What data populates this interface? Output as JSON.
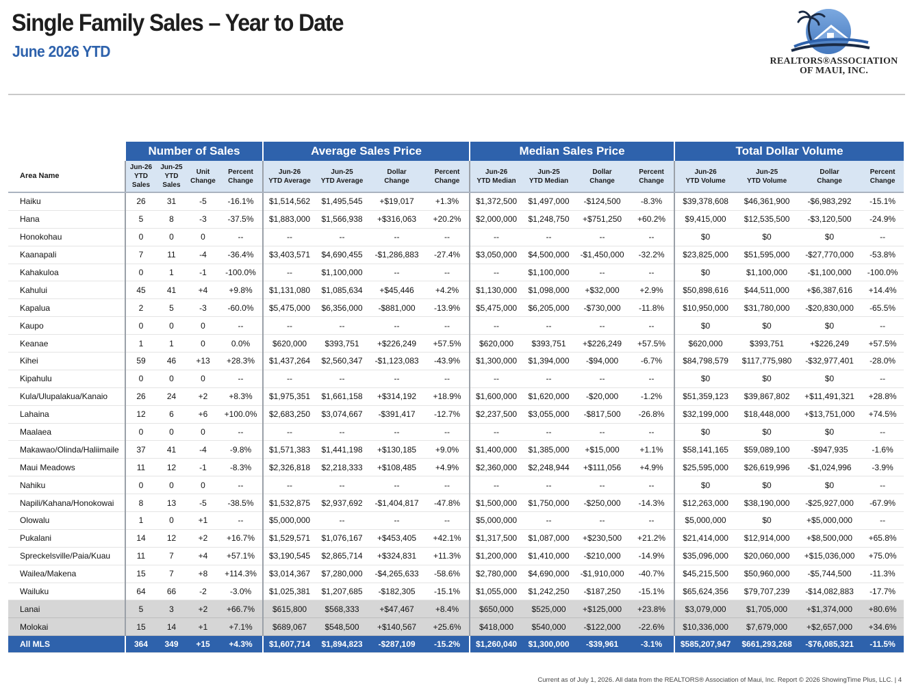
{
  "header": {
    "title": "Single Family Sales – Year to Date",
    "subtitle": "June 2026 YTD",
    "logo_line1": "REALTORS®ASSOCIATION",
    "logo_line2": "OF MAUI, INC."
  },
  "table": {
    "groups": [
      "Number of Sales",
      "Average Sales Price",
      "Median Sales Price",
      "Total Dollar Volume"
    ],
    "area_header": "Area Name",
    "subheaders": [
      [
        "Jun-26",
        "YTD",
        "Sales"
      ],
      [
        "Jun-25",
        "YTD",
        "Sales"
      ],
      [
        "Unit",
        "Change"
      ],
      [
        "Percent",
        "Change"
      ],
      [
        "Jun-26",
        "YTD Average"
      ],
      [
        "Jun-25",
        "YTD Average"
      ],
      [
        "Dollar",
        "Change"
      ],
      [
        "Percent",
        "Change"
      ],
      [
        "Jun-26",
        "YTD Median"
      ],
      [
        "Jun-25",
        "YTD Median"
      ],
      [
        "Dollar",
        "Change"
      ],
      [
        "Percent",
        "Change"
      ],
      [
        "Jun-26",
        "YTD Volume"
      ],
      [
        "Jun-25",
        "YTD Volume"
      ],
      [
        "Dollar",
        "Change"
      ],
      [
        "Percent",
        "Change"
      ]
    ],
    "rows": [
      [
        "Haiku",
        "26",
        "31",
        "-5",
        "-16.1%",
        "$1,514,562",
        "$1,495,545",
        "+$19,017",
        "+1.3%",
        "$1,372,500",
        "$1,497,000",
        "-$124,500",
        "-8.3%",
        "$39,378,608",
        "$46,361,900",
        "-$6,983,292",
        "-15.1%"
      ],
      [
        "Hana",
        "5",
        "8",
        "-3",
        "-37.5%",
        "$1,883,000",
        "$1,566,938",
        "+$316,063",
        "+20.2%",
        "$2,000,000",
        "$1,248,750",
        "+$751,250",
        "+60.2%",
        "$9,415,000",
        "$12,535,500",
        "-$3,120,500",
        "-24.9%"
      ],
      [
        "Honokohau",
        "0",
        "0",
        "0",
        "--",
        "--",
        "--",
        "--",
        "--",
        "--",
        "--",
        "--",
        "--",
        "$0",
        "$0",
        "$0",
        "--"
      ],
      [
        "Kaanapali",
        "7",
        "11",
        "-4",
        "-36.4%",
        "$3,403,571",
        "$4,690,455",
        "-$1,286,883",
        "-27.4%",
        "$3,050,000",
        "$4,500,000",
        "-$1,450,000",
        "-32.2%",
        "$23,825,000",
        "$51,595,000",
        "-$27,770,000",
        "-53.8%"
      ],
      [
        "Kahakuloa",
        "0",
        "1",
        "-1",
        "-100.0%",
        "--",
        "$1,100,000",
        "--",
        "--",
        "--",
        "$1,100,000",
        "--",
        "--",
        "$0",
        "$1,100,000",
        "-$1,100,000",
        "-100.0%"
      ],
      [
        "Kahului",
        "45",
        "41",
        "+4",
        "+9.8%",
        "$1,131,080",
        "$1,085,634",
        "+$45,446",
        "+4.2%",
        "$1,130,000",
        "$1,098,000",
        "+$32,000",
        "+2.9%",
        "$50,898,616",
        "$44,511,000",
        "+$6,387,616",
        "+14.4%"
      ],
      [
        "Kapalua",
        "2",
        "5",
        "-3",
        "-60.0%",
        "$5,475,000",
        "$6,356,000",
        "-$881,000",
        "-13.9%",
        "$5,475,000",
        "$6,205,000",
        "-$730,000",
        "-11.8%",
        "$10,950,000",
        "$31,780,000",
        "-$20,830,000",
        "-65.5%"
      ],
      [
        "Kaupo",
        "0",
        "0",
        "0",
        "--",
        "--",
        "--",
        "--",
        "--",
        "--",
        "--",
        "--",
        "--",
        "$0",
        "$0",
        "$0",
        "--"
      ],
      [
        "Keanae",
        "1",
        "1",
        "0",
        "0.0%",
        "$620,000",
        "$393,751",
        "+$226,249",
        "+57.5%",
        "$620,000",
        "$393,751",
        "+$226,249",
        "+57.5%",
        "$620,000",
        "$393,751",
        "+$226,249",
        "+57.5%"
      ],
      [
        "Kihei",
        "59",
        "46",
        "+13",
        "+28.3%",
        "$1,437,264",
        "$2,560,347",
        "-$1,123,083",
        "-43.9%",
        "$1,300,000",
        "$1,394,000",
        "-$94,000",
        "-6.7%",
        "$84,798,579",
        "$117,775,980",
        "-$32,977,401",
        "-28.0%"
      ],
      [
        "Kipahulu",
        "0",
        "0",
        "0",
        "--",
        "--",
        "--",
        "--",
        "--",
        "--",
        "--",
        "--",
        "--",
        "$0",
        "$0",
        "$0",
        "--"
      ],
      [
        "Kula/Ulupalakua/Kanaio",
        "26",
        "24",
        "+2",
        "+8.3%",
        "$1,975,351",
        "$1,661,158",
        "+$314,192",
        "+18.9%",
        "$1,600,000",
        "$1,620,000",
        "-$20,000",
        "-1.2%",
        "$51,359,123",
        "$39,867,802",
        "+$11,491,321",
        "+28.8%"
      ],
      [
        "Lahaina",
        "12",
        "6",
        "+6",
        "+100.0%",
        "$2,683,250",
        "$3,074,667",
        "-$391,417",
        "-12.7%",
        "$2,237,500",
        "$3,055,000",
        "-$817,500",
        "-26.8%",
        "$32,199,000",
        "$18,448,000",
        "+$13,751,000",
        "+74.5%"
      ],
      [
        "Maalaea",
        "0",
        "0",
        "0",
        "--",
        "--",
        "--",
        "--",
        "--",
        "--",
        "--",
        "--",
        "--",
        "$0",
        "$0",
        "$0",
        "--"
      ],
      [
        "Makawao/Olinda/Haliimaile",
        "37",
        "41",
        "-4",
        "-9.8%",
        "$1,571,383",
        "$1,441,198",
        "+$130,185",
        "+9.0%",
        "$1,400,000",
        "$1,385,000",
        "+$15,000",
        "+1.1%",
        "$58,141,165",
        "$59,089,100",
        "-$947,935",
        "-1.6%"
      ],
      [
        "Maui Meadows",
        "11",
        "12",
        "-1",
        "-8.3%",
        "$2,326,818",
        "$2,218,333",
        "+$108,485",
        "+4.9%",
        "$2,360,000",
        "$2,248,944",
        "+$111,056",
        "+4.9%",
        "$25,595,000",
        "$26,619,996",
        "-$1,024,996",
        "-3.9%"
      ],
      [
        "Nahiku",
        "0",
        "0",
        "0",
        "--",
        "--",
        "--",
        "--",
        "--",
        "--",
        "--",
        "--",
        "--",
        "$0",
        "$0",
        "$0",
        "--"
      ],
      [
        "Napili/Kahana/Honokowai",
        "8",
        "13",
        "-5",
        "-38.5%",
        "$1,532,875",
        "$2,937,692",
        "-$1,404,817",
        "-47.8%",
        "$1,500,000",
        "$1,750,000",
        "-$250,000",
        "-14.3%",
        "$12,263,000",
        "$38,190,000",
        "-$25,927,000",
        "-67.9%"
      ],
      [
        "Olowalu",
        "1",
        "0",
        "+1",
        "--",
        "$5,000,000",
        "--",
        "--",
        "--",
        "$5,000,000",
        "--",
        "--",
        "--",
        "$5,000,000",
        "$0",
        "+$5,000,000",
        "--"
      ],
      [
        "Pukalani",
        "14",
        "12",
        "+2",
        "+16.7%",
        "$1,529,571",
        "$1,076,167",
        "+$453,405",
        "+42.1%",
        "$1,317,500",
        "$1,087,000",
        "+$230,500",
        "+21.2%",
        "$21,414,000",
        "$12,914,000",
        "+$8,500,000",
        "+65.8%"
      ],
      [
        "Spreckelsville/Paia/Kuau",
        "11",
        "7",
        "+4",
        "+57.1%",
        "$3,190,545",
        "$2,865,714",
        "+$324,831",
        "+11.3%",
        "$1,200,000",
        "$1,410,000",
        "-$210,000",
        "-14.9%",
        "$35,096,000",
        "$20,060,000",
        "+$15,036,000",
        "+75.0%"
      ],
      [
        "Wailea/Makena",
        "15",
        "7",
        "+8",
        "+114.3%",
        "$3,014,367",
        "$7,280,000",
        "-$4,265,633",
        "-58.6%",
        "$2,780,000",
        "$4,690,000",
        "-$1,910,000",
        "-40.7%",
        "$45,215,500",
        "$50,960,000",
        "-$5,744,500",
        "-11.3%"
      ],
      [
        "Wailuku",
        "64",
        "66",
        "-2",
        "-3.0%",
        "$1,025,381",
        "$1,207,685",
        "-$182,305",
        "-15.1%",
        "$1,055,000",
        "$1,242,250",
        "-$187,250",
        "-15.1%",
        "$65,624,356",
        "$79,707,239",
        "-$14,082,883",
        "-17.7%"
      ]
    ],
    "shaded_rows": [
      [
        "Lanai",
        "5",
        "3",
        "+2",
        "+66.7%",
        "$615,800",
        "$568,333",
        "+$47,467",
        "+8.4%",
        "$650,000",
        "$525,000",
        "+$125,000",
        "+23.8%",
        "$3,079,000",
        "$1,705,000",
        "+$1,374,000",
        "+80.6%"
      ],
      [
        "Molokai",
        "15",
        "14",
        "+1",
        "+7.1%",
        "$689,067",
        "$548,500",
        "+$140,567",
        "+25.6%",
        "$418,000",
        "$540,000",
        "-$122,000",
        "-22.6%",
        "$10,336,000",
        "$7,679,000",
        "+$2,657,000",
        "+34.6%"
      ]
    ],
    "total_row": [
      "All MLS",
      "364",
      "349",
      "+15",
      "+4.3%",
      "$1,607,714",
      "$1,894,823",
      "-$287,109",
      "-15.2%",
      "$1,260,040",
      "$1,300,000",
      "-$39,961",
      "-3.1%",
      "$585,207,947",
      "$661,293,268",
      "-$76,085,321",
      "-11.5%"
    ]
  },
  "footer": {
    "text": "Current as of July 1, 2026. All data from the REALTORS® Association of Maui, Inc. Report © 2026 ShowingTime Plus, LLC.  |  4"
  },
  "colors": {
    "accent_blue": "#2e62ac",
    "subheader_fill": "#d8e5f3",
    "shaded_fill": "#d6d6d6"
  }
}
